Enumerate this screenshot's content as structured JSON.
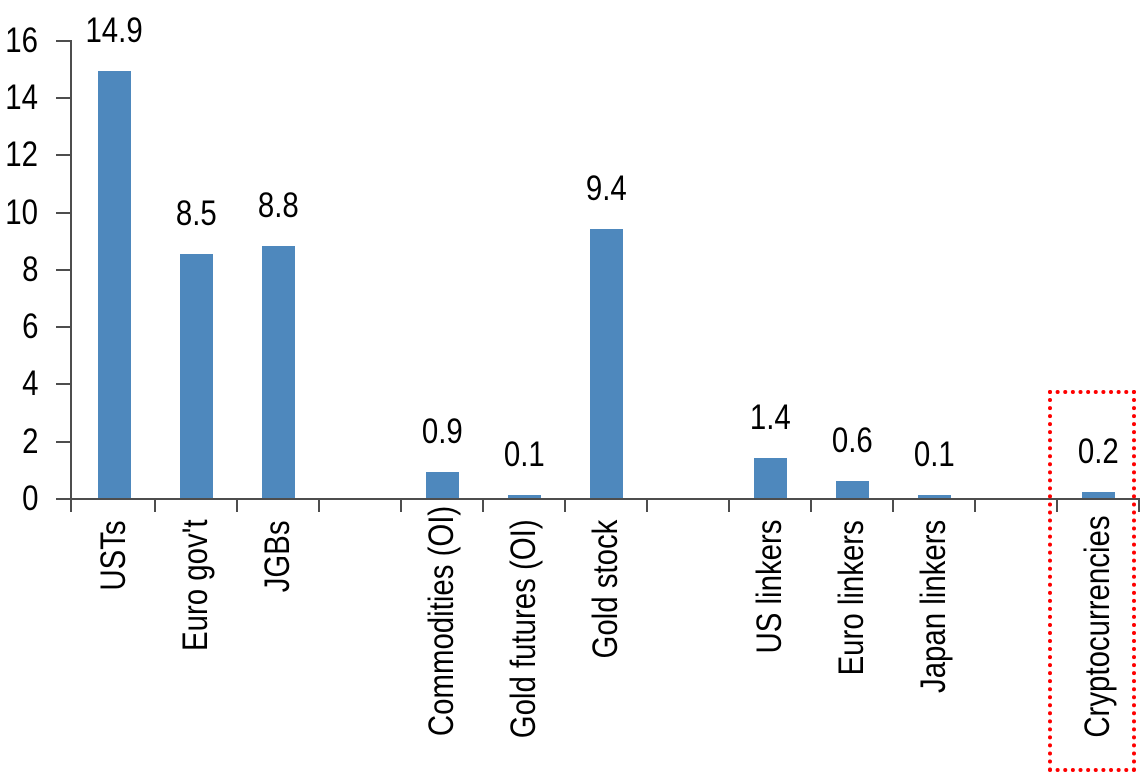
{
  "chart_data": {
    "type": "bar",
    "categories": [
      "USTs",
      "Euro gov't",
      "JGBs",
      "",
      "Commodities (OI)",
      "Gold futures (OI)",
      "Gold stock",
      "",
      "US linkers",
      "Euro linkers",
      "Japan linkers",
      "",
      "Cryptocurrencies"
    ],
    "values": [
      14.9,
      8.5,
      8.8,
      null,
      0.9,
      0.1,
      9.4,
      null,
      1.4,
      0.6,
      0.1,
      null,
      0.2
    ],
    "bars": [
      {
        "slot": 0,
        "label": "USTs",
        "value": 14.9,
        "value_label": "14.9"
      },
      {
        "slot": 1,
        "label": "Euro gov't",
        "value": 8.5,
        "value_label": "8.5"
      },
      {
        "slot": 2,
        "label": "JGBs",
        "value": 8.8,
        "value_label": "8.8"
      },
      {
        "slot": 4,
        "label": "Commodities (OI)",
        "value": 0.9,
        "value_label": "0.9"
      },
      {
        "slot": 5,
        "label": "Gold futures (OI)",
        "value": 0.1,
        "value_label": "0.1"
      },
      {
        "slot": 6,
        "label": "Gold stock",
        "value": 9.4,
        "value_label": "9.4"
      },
      {
        "slot": 8,
        "label": "US linkers",
        "value": 1.4,
        "value_label": "1.4"
      },
      {
        "slot": 9,
        "label": "Euro linkers",
        "value": 0.6,
        "value_label": "0.6"
      },
      {
        "slot": 10,
        "label": "Japan linkers",
        "value": 0.1,
        "value_label": "0.1"
      },
      {
        "slot": 12,
        "label": "Cryptocurrencies",
        "value": 0.2,
        "value_label": "0.2"
      }
    ],
    "blank_slots": [
      3,
      7,
      11
    ],
    "y_ticks": [
      "0",
      "2",
      "4",
      "6",
      "8",
      "10",
      "12",
      "14",
      "16"
    ],
    "ylim": [
      0,
      16
    ],
    "grid": false,
    "legend": false,
    "data_labels_shown": true,
    "bar_color": "#4e88bd",
    "axis_color": "#4d4d4d",
    "text_color": "#000000",
    "highlight": {
      "target": "Cryptocurrencies",
      "shape": "dotted-rectangle",
      "color": "#fe0000"
    }
  }
}
